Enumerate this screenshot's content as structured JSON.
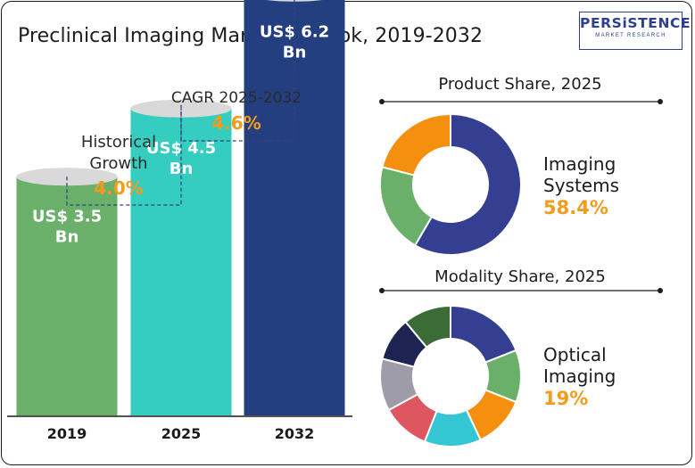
{
  "header": {
    "title": "Preclinical Imaging Market Outlook, 2019-2032",
    "logo_main": "PERSiSTENCE",
    "logo_sub": "MARKET RESEARCH"
  },
  "chart_data": [
    {
      "type": "bar",
      "categories": [
        "2019",
        "2025",
        "2032"
      ],
      "values": [
        3.5,
        4.5,
        6.2
      ],
      "value_labels": [
        [
          "US$ 3.5",
          "Bn"
        ],
        [
          "US$ 4.5",
          "Bn"
        ],
        [
          "US$ 6.2",
          "Bn"
        ]
      ],
      "colors": [
        "#6ab06a",
        "#34cdbf",
        "#233f80"
      ],
      "cap_color": "#d9d9d9",
      "annotations": [
        {
          "label_lines": [
            "Historical",
            "Growth"
          ],
          "value": "4.0%",
          "from": "2019",
          "to": "2025"
        },
        {
          "label_lines": [
            "CAGR 2025-2032"
          ],
          "value": "4.6%",
          "from": "2025",
          "to": "2032"
        }
      ],
      "accent": "#f29b1c"
    },
    {
      "type": "pie",
      "title": "Product Share, 2025",
      "highlight_label": [
        "Imaging",
        "Systems"
      ],
      "highlight_value": "58.4%",
      "slices": [
        {
          "value": 58.4,
          "color": "#353f92"
        },
        {
          "value": 20.6,
          "color": "#6ab06a"
        },
        {
          "value": 21.0,
          "color": "#f5900f"
        }
      ]
    },
    {
      "type": "pie",
      "title": "Modality Share, 2025",
      "highlight_label": [
        "Optical",
        "Imaging"
      ],
      "highlight_value": "19%",
      "slices": [
        {
          "value": 19,
          "color": "#353f92"
        },
        {
          "value": 12,
          "color": "#6ab06a"
        },
        {
          "value": 12,
          "color": "#f5900f"
        },
        {
          "value": 13,
          "color": "#34c6d3"
        },
        {
          "value": 11,
          "color": "#de5660"
        },
        {
          "value": 12,
          "color": "#9d9ca8"
        },
        {
          "value": 10,
          "color": "#1d2452"
        },
        {
          "value": 11,
          "color": "#3b6b37"
        }
      ]
    }
  ]
}
